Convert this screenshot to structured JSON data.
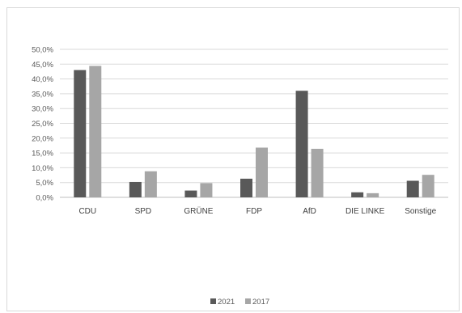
{
  "chart_data": {
    "type": "bar",
    "categories": [
      "CDU",
      "SPD",
      "GRÜNE",
      "FDP",
      "AfD",
      "DIE LINKE",
      "Sonstige"
    ],
    "series": [
      {
        "name": "2021",
        "color": "#595959",
        "values": [
          43.0,
          5.2,
          2.3,
          6.3,
          36.0,
          1.7,
          5.6
        ]
      },
      {
        "name": "2017",
        "color": "#a6a6a6",
        "values": [
          44.4,
          8.8,
          4.8,
          16.8,
          16.4,
          1.4,
          7.6
        ]
      }
    ],
    "yticks": [
      "0,0%",
      "5,0%",
      "10,0%",
      "15,0%",
      "20,0%",
      "25,0%",
      "30,0%",
      "35,0%",
      "40,0%",
      "45,0%",
      "50,0%"
    ],
    "ylim": [
      0,
      50
    ],
    "ytick_step": 5,
    "grid": true,
    "legend_position": "bottom"
  }
}
